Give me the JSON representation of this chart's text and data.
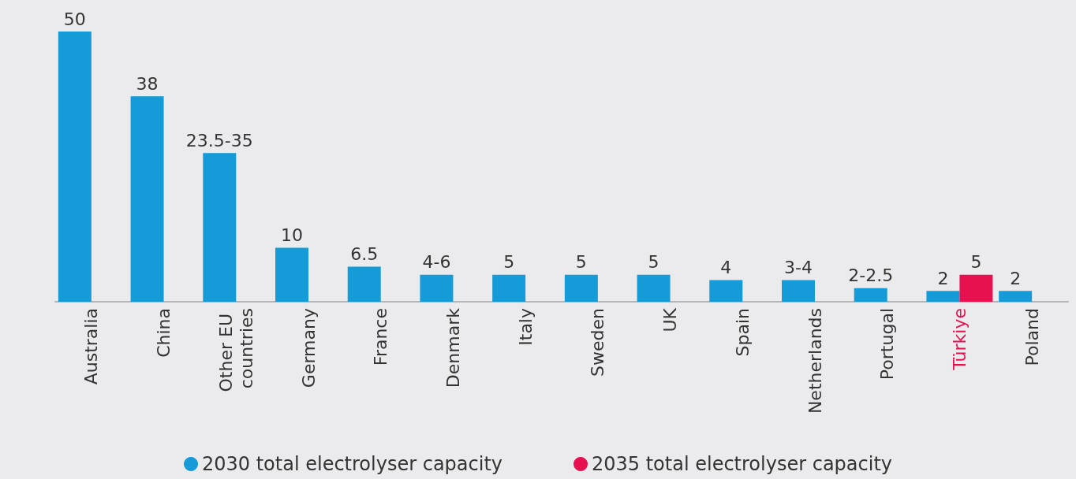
{
  "chart_data": {
    "type": "bar",
    "categories": [
      "Australia",
      "China",
      "Other EU countries",
      "Germany",
      "France",
      "Denmark",
      "Italy",
      "Sweden",
      "UK",
      "Spain",
      "Netherlands",
      "Portugal",
      "Türkiye",
      "Poland"
    ],
    "series": [
      {
        "name": "2030 total electrolyser capacity",
        "color": "#159bd7",
        "values": [
          50,
          38,
          27.5,
          10,
          6.5,
          5,
          5,
          5,
          5,
          4,
          4,
          2.5,
          2,
          2
        ],
        "value_labels": [
          "50",
          "38",
          "23.5-35",
          "10",
          "6.5",
          "4-6",
          "5",
          "5",
          "5",
          "4",
          "3-4",
          "2-2.5",
          "2",
          "2"
        ]
      },
      {
        "name": "2035 total electrolyser capacity",
        "color": "#e8114f",
        "values": [
          null,
          null,
          null,
          null,
          null,
          null,
          null,
          null,
          null,
          null,
          null,
          null,
          5,
          null
        ],
        "value_labels": [
          null,
          null,
          null,
          null,
          null,
          null,
          null,
          null,
          null,
          null,
          null,
          null,
          "5",
          null
        ]
      }
    ],
    "legend": "bottom",
    "grid": false
  }
}
